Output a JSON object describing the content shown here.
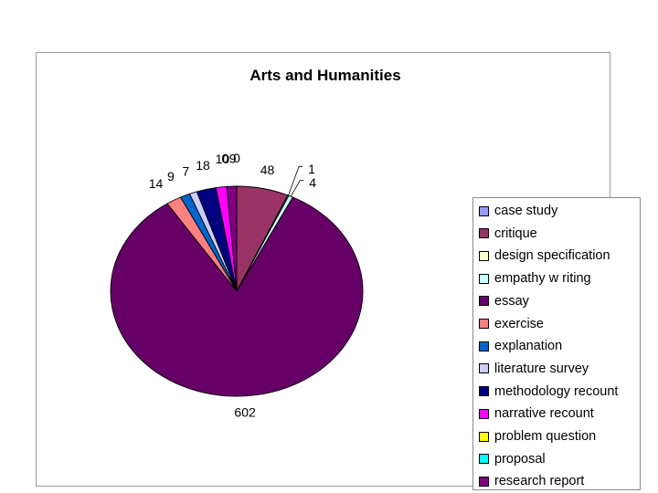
{
  "chart_data": {
    "type": "pie",
    "title": "Arts and Humanities",
    "categories": [
      "case study",
      "critique",
      "design specification",
      "empathy w riting",
      "essay",
      "exercise",
      "explanation",
      "literature survey",
      "methodology recount",
      "narrative recount",
      "problem question",
      "proposal",
      "research report"
    ],
    "values": [
      0,
      48,
      1,
      4,
      602,
      14,
      9,
      7,
      18,
      10,
      0,
      0,
      9
    ],
    "data_labels": [
      "0",
      "48",
      "1",
      "4",
      "602",
      "14",
      "9",
      "7",
      "18",
      "10",
      "0",
      "0",
      "9"
    ],
    "colors": [
      "#9999FF",
      "#993366",
      "#FFFFCC",
      "#CCFFFF",
      "#660066",
      "#FF8080",
      "#0066CC",
      "#CCCCFF",
      "#000080",
      "#FF00FF",
      "#FFFF00",
      "#00FFFF",
      "#800080"
    ],
    "legend_position": "right",
    "grid": false
  }
}
